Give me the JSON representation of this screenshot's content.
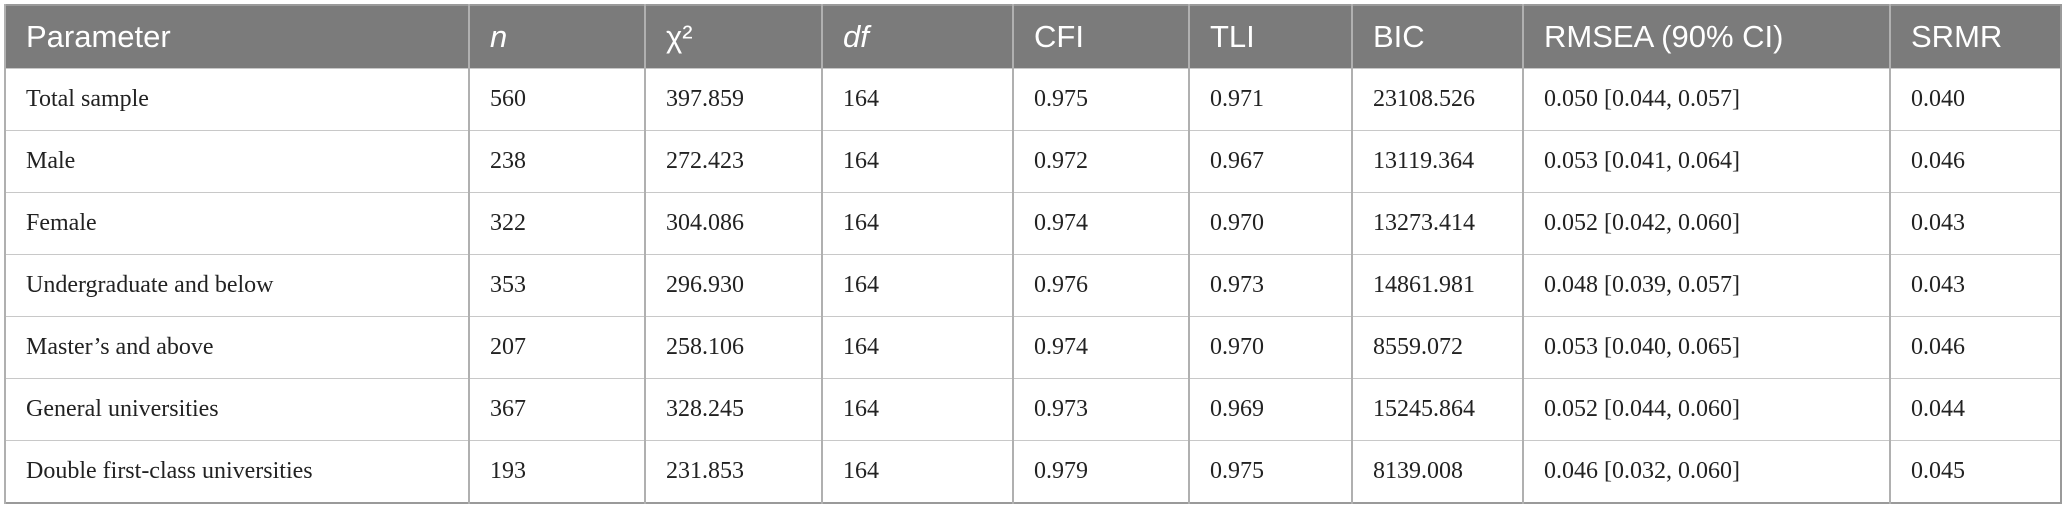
{
  "table": {
    "headers": [
      "Parameter",
      "n",
      "χ²",
      "df",
      "CFI",
      "TLI",
      "BIC",
      "RMSEA (90% CI)",
      "SRMR"
    ],
    "rows": [
      [
        "Total sample",
        "560",
        "397.859",
        "164",
        "0.975",
        "0.971",
        "23108.526",
        "0.050 [0.044, 0.057]",
        "0.040"
      ],
      [
        "Male",
        "238",
        "272.423",
        "164",
        "0.972",
        "0.967",
        "13119.364",
        "0.053 [0.041, 0.064]",
        "0.046"
      ],
      [
        "Female",
        "322",
        "304.086",
        "164",
        "0.974",
        "0.970",
        "13273.414",
        "0.052 [0.042, 0.060]",
        "0.043"
      ],
      [
        "Undergraduate and below",
        "353",
        "296.930",
        "164",
        "0.976",
        "0.973",
        "14861.981",
        "0.048 [0.039, 0.057]",
        "0.043"
      ],
      [
        "Master’s and above",
        "207",
        "258.106",
        "164",
        "0.974",
        "0.970",
        "8559.072",
        "0.053 [0.040, 0.065]",
        "0.046"
      ],
      [
        "General universities",
        "367",
        "328.245",
        "164",
        "0.973",
        "0.969",
        "15245.864",
        "0.052 [0.044, 0.060]",
        "0.044"
      ],
      [
        "Double first-class universities",
        "193",
        "231.853",
        "164",
        "0.979",
        "0.975",
        "8139.008",
        "0.046 [0.032, 0.060]",
        "0.045"
      ]
    ]
  }
}
